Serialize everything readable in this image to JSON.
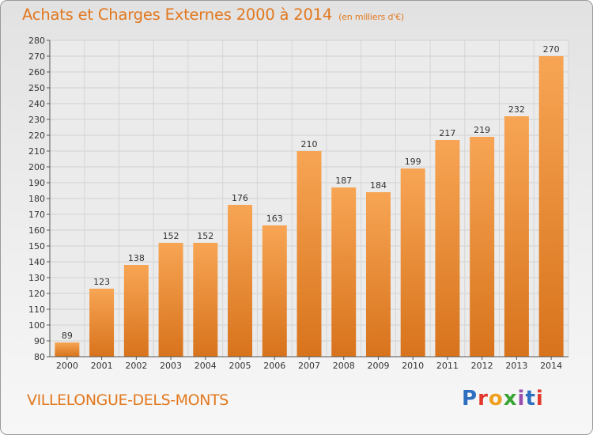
{
  "chart_data": {
    "type": "bar",
    "title": "Achats et Charges Externes 2000 à 2014",
    "subtitle": "(en milliers d'€)",
    "categories": [
      "2000",
      "2001",
      "2002",
      "2003",
      "2004",
      "2005",
      "2006",
      "2007",
      "2008",
      "2009",
      "2010",
      "2011",
      "2012",
      "2013",
      "2014"
    ],
    "values": [
      89,
      123,
      138,
      152,
      152,
      176,
      163,
      210,
      187,
      184,
      199,
      217,
      219,
      232,
      270
    ],
    "ylim": [
      80,
      280
    ],
    "ytick_step": 10,
    "grid": true,
    "bar_color": "#f0922f",
    "xlabel": "",
    "ylabel": ""
  },
  "footer": {
    "place_name": "VILLELONGUE-DELS-MONTS",
    "logo_text": "Proxiti",
    "logo_colors": [
      "#2e6fc0",
      "#e2392a",
      "#f0a020",
      "#3aa535",
      "#9a4fb0",
      "#2e6fc0",
      "#e2392a"
    ]
  }
}
